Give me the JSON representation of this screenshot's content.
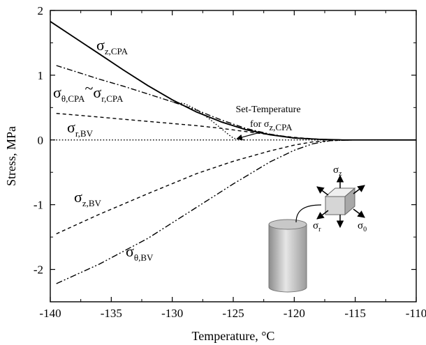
{
  "chart_data": {
    "type": "line",
    "xlabel": "Temperature, °C",
    "ylabel": "Stress, MPa",
    "xlim": [
      -140,
      -110
    ],
    "ylim": [
      -2.5,
      2
    ],
    "xticks": [
      -140,
      -135,
      -130,
      -125,
      -120,
      -115,
      -110
    ],
    "yticks": [
      -2,
      -1,
      0,
      1,
      2
    ],
    "grid": false,
    "series": [
      {
        "key": "z_cpa",
        "dash": "solid",
        "x": [
          -140,
          -138,
          -136,
          -134,
          -132,
          -130,
          -128,
          -126,
          -124,
          -122,
          -120,
          -118,
          -116,
          -113,
          -110
        ],
        "y": [
          1.83,
          1.58,
          1.33,
          1.08,
          0.84,
          0.62,
          0.43,
          0.28,
          0.16,
          0.08,
          0.03,
          0.01,
          0.0,
          0.0,
          0.0
        ]
      },
      {
        "key": "theta_cpa",
        "dash": "dashdot",
        "x": [
          -139.5,
          -138,
          -136,
          -134,
          -132,
          -130,
          -128,
          -126,
          -124,
          -122,
          -120,
          -118,
          -116,
          -113
        ],
        "y": [
          1.15,
          1.06,
          0.94,
          0.83,
          0.71,
          0.59,
          0.46,
          0.31,
          0.18,
          0.09,
          0.03,
          0.01,
          0.0,
          0.0
        ]
      },
      {
        "key": "r_bv",
        "dash": "dashed",
        "x": [
          -139.5,
          -137,
          -134,
          -131,
          -128,
          -126,
          -124,
          -122,
          -120,
          -118,
          -116,
          -113
        ],
        "y": [
          0.41,
          0.37,
          0.32,
          0.27,
          0.22,
          0.18,
          0.13,
          0.08,
          0.04,
          0.01,
          0.0,
          0.0
        ]
      },
      {
        "key": "cpa_dotted",
        "dash": "dotted",
        "x": [
          -130,
          -129,
          -128,
          -127,
          -126,
          -125.3,
          -125,
          -124.5,
          -124
        ],
        "y": [
          0.59,
          0.56,
          0.47,
          0.33,
          0.18,
          0.07,
          0.03,
          0.005,
          0.0
        ]
      },
      {
        "key": "zero_line",
        "dash": "dotted",
        "x": [
          -140,
          -110
        ],
        "y": [
          0,
          0
        ]
      },
      {
        "key": "z_bv",
        "dash": "dashed",
        "x": [
          -139.5,
          -136,
          -132,
          -128,
          -125,
          -122,
          -120,
          -118.5,
          -117,
          -115
        ],
        "y": [
          -1.45,
          -1.15,
          -0.83,
          -0.52,
          -0.33,
          -0.17,
          -0.08,
          -0.03,
          -0.01,
          0.0
        ]
      },
      {
        "key": "theta_bv",
        "dash": "dashdotdot",
        "x": [
          -139.5,
          -136,
          -132,
          -128,
          -125,
          -122,
          -120,
          -118.5,
          -117,
          -115
        ],
        "y": [
          -2.22,
          -1.92,
          -1.52,
          -1.04,
          -0.68,
          -0.34,
          -0.16,
          -0.06,
          -0.01,
          0.0
        ]
      }
    ],
    "labels": {
      "sigma": "σ",
      "z_cpa": "z,CPA",
      "theta_cpa": "θ,CPA",
      "tilde": "~",
      "r_cpa": "r,CPA",
      "r_bv": "r,BV",
      "z_bv": "z,BV",
      "theta_bv": "θ,BV"
    },
    "annotation": {
      "line1": "Set-Temperature",
      "line2_prefix": "for σ",
      "line2_sub": "z,CPA",
      "arrow_tip": [
        -124.7,
        0.02
      ]
    },
    "inset": {
      "sigma": "σ",
      "sub_z": "z",
      "sub_r": "r",
      "sub_theta": "0"
    }
  }
}
